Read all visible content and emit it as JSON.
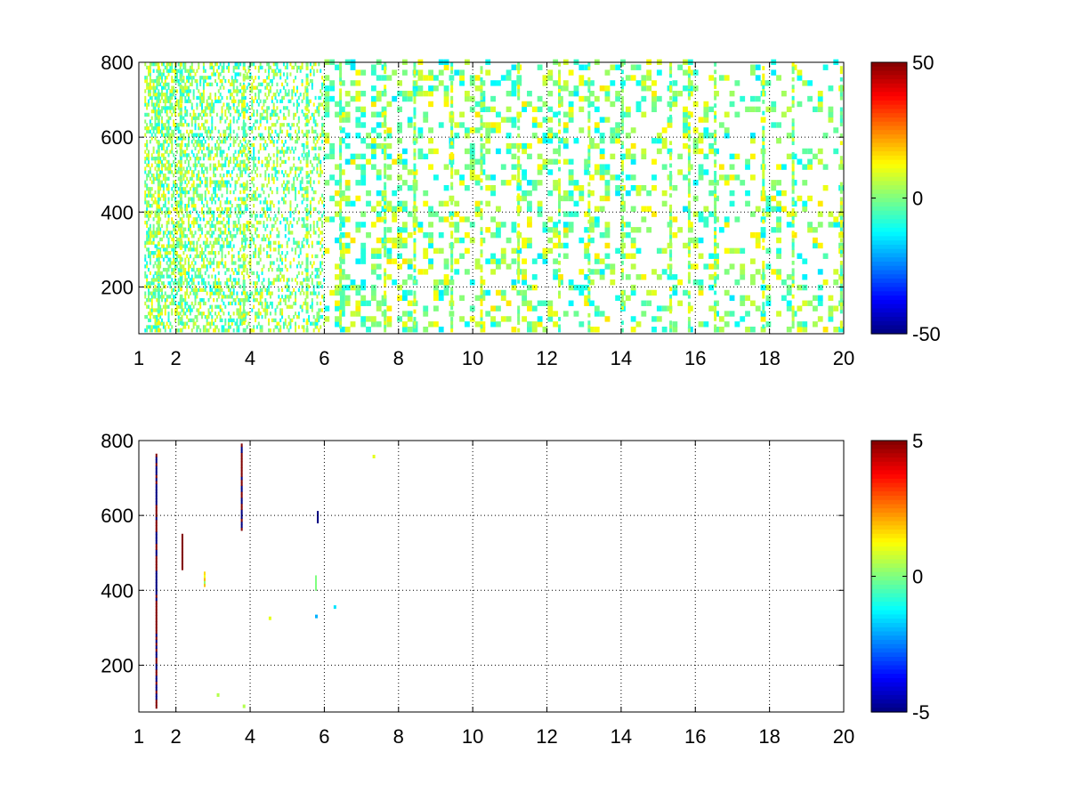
{
  "chart_data": [
    {
      "type": "heatmap",
      "title": "",
      "xlabel": "",
      "ylabel": "",
      "xlim": [
        1,
        20
      ],
      "ylim": [
        75,
        800
      ],
      "x_ticks": [
        1,
        2,
        4,
        6,
        8,
        10,
        12,
        14,
        16,
        18,
        20
      ],
      "x_tick_labels": [
        "1",
        "2",
        "4",
        "6",
        "8",
        "10",
        "12",
        "14",
        "16",
        "18",
        "20"
      ],
      "y_ticks": [
        200,
        400,
        600,
        800
      ],
      "y_tick_labels": [
        "200",
        "400",
        "600",
        "800"
      ],
      "grid": true,
      "colormap": "jet",
      "colorbar": {
        "min": -50,
        "max": 50,
        "tick_labels": [
          "50",
          "0",
          "-50"
        ],
        "ticks": [
          50,
          0,
          -50
        ]
      },
      "background": "#ffffff",
      "visible_columns": [
        1.5,
        2.1,
        3.8,
        5.5,
        6.4,
        7.6,
        8.4,
        9.4,
        10.2,
        11.2,
        12.3,
        13.1,
        14.0,
        15.3,
        15.8,
        16.5,
        17.8,
        18.6,
        19.9
      ],
      "value_pattern": "sparse cells of small values (mostly -15 to 15) over a white background; dense thin vertical stripes for x < 6, coarser scattered cells for x > 6"
    },
    {
      "type": "heatmap",
      "title": "",
      "xlabel": "",
      "ylabel": "",
      "xlim": [
        1,
        20
      ],
      "ylim": [
        75,
        800
      ],
      "x_ticks": [
        1,
        2,
        4,
        6,
        8,
        10,
        12,
        14,
        16,
        18,
        20
      ],
      "x_tick_labels": [
        "1",
        "2",
        "4",
        "6",
        "8",
        "10",
        "12",
        "14",
        "16",
        "18",
        "20"
      ],
      "y_ticks": [
        200,
        400,
        600,
        800
      ],
      "y_tick_labels": [
        "200",
        "400",
        "600",
        "800"
      ],
      "grid": true,
      "colormap": "jet",
      "colorbar": {
        "min": -5,
        "max": 5,
        "tick_labels": [
          "5",
          "0",
          "-5"
        ],
        "ticks": [
          5,
          0,
          -5
        ]
      },
      "background": "#ffffff",
      "features": [
        {
          "x": 1.45,
          "y_range": [
            85,
            760
          ],
          "values": "alternating -5 and 5"
        },
        {
          "x": 2.15,
          "y_range": [
            455,
            545
          ],
          "values": "5"
        },
        {
          "x": 2.75,
          "y_range": [
            410,
            445
          ],
          "values": "0 to 2"
        },
        {
          "x": 3.75,
          "y_range": [
            560,
            790
          ],
          "values": "alternating -5 and 5"
        },
        {
          "x": 5.8,
          "y_range": [
            580,
            610
          ],
          "values": "-5"
        },
        {
          "x": 5.75,
          "y_range": [
            400,
            440
          ],
          "values": "0"
        }
      ]
    }
  ]
}
